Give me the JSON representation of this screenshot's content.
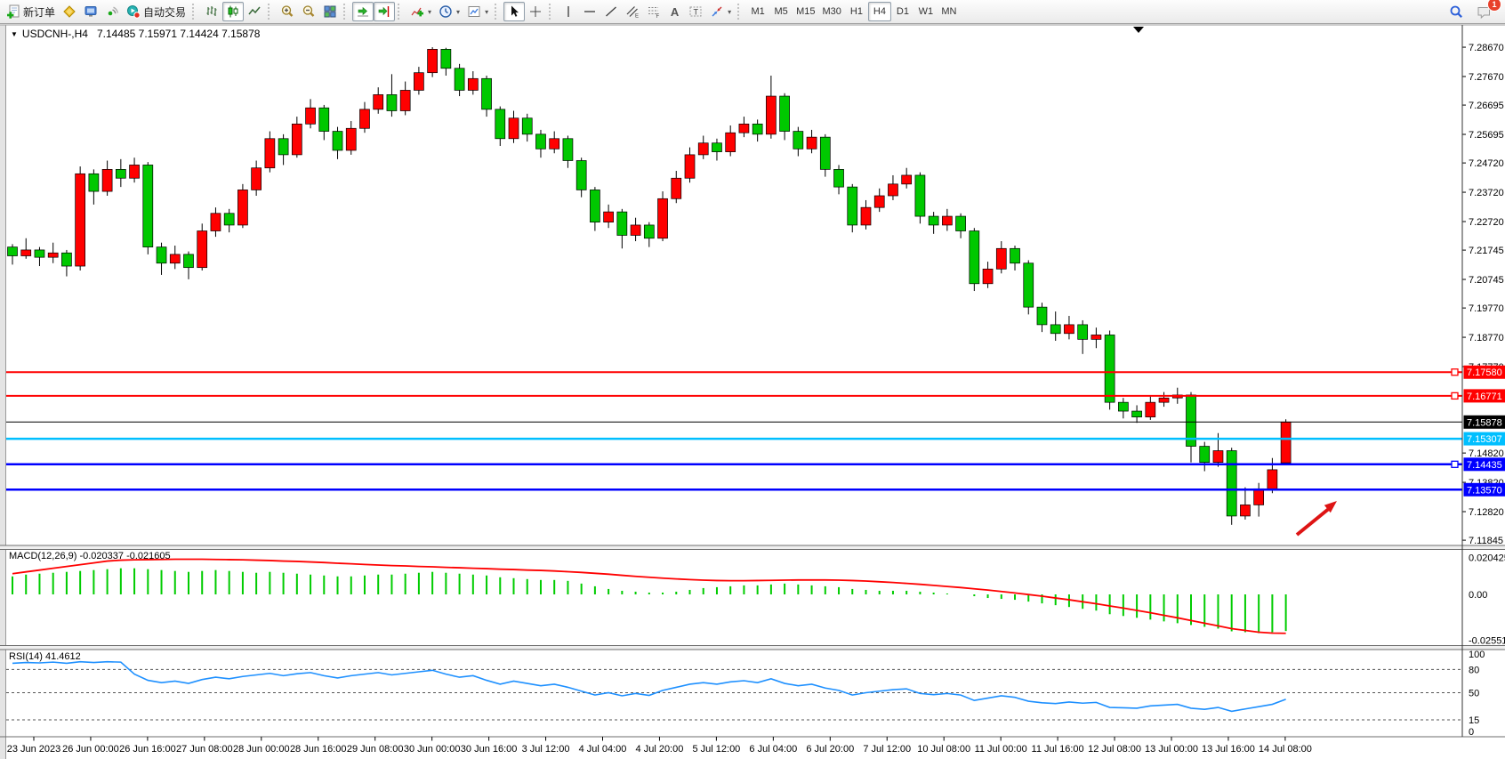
{
  "window": {
    "symbol_title": "USDCNH-,H4",
    "ohlc_text": "7.14485 7.15971 7.14424 7.15878",
    "notification_badge": "1"
  },
  "toolbar": {
    "new_order": "新订单",
    "autotrading": "自动交易",
    "text_tool": "A",
    "label_tool": "T",
    "timeframes": [
      "M1",
      "M5",
      "M15",
      "M30",
      "H1",
      "H4",
      "D1",
      "W1",
      "MN"
    ],
    "active_timeframe": "H4"
  },
  "chart_data": {
    "type": "candlestick",
    "title": "USDCNH-,H4",
    "current": {
      "open": "7.14485",
      "high": "7.15971",
      "low": "7.14424",
      "close": "7.15878"
    },
    "ylim": [
      7.117,
      7.2937
    ],
    "up_color": "#FF0000",
    "down_color": "#00C800",
    "wick_color": "#000000",
    "price_axis_ticks": [
      "7.28670",
      "7.27670",
      "7.26695",
      "7.25695",
      "7.24720",
      "7.23720",
      "7.22720",
      "7.21745",
      "7.20745",
      "7.19770",
      "7.18770",
      "7.17770",
      "7.14820",
      "7.13820",
      "7.12820",
      "7.11845"
    ],
    "candles": [
      [
        7.2185,
        7.2195,
        7.2125,
        7.2155
      ],
      [
        7.2155,
        7.2215,
        7.2145,
        7.2175
      ],
      [
        7.2175,
        7.2185,
        7.212,
        7.215
      ],
      [
        7.215,
        7.22,
        7.213,
        7.2165
      ],
      [
        7.2165,
        7.2175,
        7.2085,
        7.212
      ],
      [
        7.212,
        7.246,
        7.2105,
        7.2435
      ],
      [
        7.2435,
        7.245,
        7.233,
        7.2375
      ],
      [
        7.2375,
        7.248,
        7.236,
        7.245
      ],
      [
        7.245,
        7.2485,
        7.239,
        7.242
      ],
      [
        7.242,
        7.249,
        7.2405,
        7.2465
      ],
      [
        7.2465,
        7.2475,
        7.216,
        7.2185
      ],
      [
        7.2185,
        7.22,
        7.209,
        7.213
      ],
      [
        7.213,
        7.219,
        7.211,
        7.216
      ],
      [
        7.216,
        7.217,
        7.2075,
        7.2115
      ],
      [
        7.2115,
        7.2265,
        7.2105,
        7.224
      ],
      [
        7.224,
        7.232,
        7.222,
        7.23
      ],
      [
        7.23,
        7.2315,
        7.2235,
        7.226
      ],
      [
        7.226,
        7.24,
        7.225,
        7.238
      ],
      [
        7.238,
        7.248,
        7.236,
        7.2455
      ],
      [
        7.2455,
        7.258,
        7.244,
        7.2555
      ],
      [
        7.2555,
        7.257,
        7.2465,
        7.25
      ],
      [
        7.25,
        7.263,
        7.249,
        7.2605
      ],
      [
        7.2605,
        7.269,
        7.259,
        7.266
      ],
      [
        7.266,
        7.267,
        7.255,
        7.258
      ],
      [
        7.258,
        7.2595,
        7.2485,
        7.2515
      ],
      [
        7.2515,
        7.2615,
        7.25,
        7.259
      ],
      [
        7.259,
        7.268,
        7.2575,
        7.2655
      ],
      [
        7.2655,
        7.273,
        7.264,
        7.2705
      ],
      [
        7.2705,
        7.2775,
        7.263,
        7.265
      ],
      [
        7.265,
        7.275,
        7.2635,
        7.272
      ],
      [
        7.272,
        7.28,
        7.2705,
        7.278
      ],
      [
        7.278,
        7.2867,
        7.2765,
        7.286
      ],
      [
        7.286,
        7.2865,
        7.277,
        7.2795
      ],
      [
        7.2795,
        7.281,
        7.27,
        7.272
      ],
      [
        7.272,
        7.2785,
        7.2705,
        7.276
      ],
      [
        7.276,
        7.277,
        7.263,
        7.2655
      ],
      [
        7.2655,
        7.2665,
        7.253,
        7.2555
      ],
      [
        7.2555,
        7.265,
        7.254,
        7.2625
      ],
      [
        7.2625,
        7.264,
        7.2545,
        7.257
      ],
      [
        7.257,
        7.2585,
        7.249,
        7.252
      ],
      [
        7.252,
        7.258,
        7.2505,
        7.2555
      ],
      [
        7.2555,
        7.2565,
        7.2455,
        7.248
      ],
      [
        7.248,
        7.249,
        7.2355,
        7.238
      ],
      [
        7.238,
        7.239,
        7.224,
        7.227
      ],
      [
        7.227,
        7.233,
        7.225,
        7.2305
      ],
      [
        7.2305,
        7.2315,
        7.218,
        7.2225
      ],
      [
        7.2225,
        7.2285,
        7.2205,
        7.226
      ],
      [
        7.226,
        7.227,
        7.2185,
        7.2215
      ],
      [
        7.2215,
        7.2375,
        7.2205,
        7.235
      ],
      [
        7.235,
        7.2445,
        7.2335,
        7.242
      ],
      [
        7.242,
        7.2525,
        7.2405,
        7.25
      ],
      [
        7.25,
        7.2565,
        7.2485,
        7.254
      ],
      [
        7.254,
        7.2555,
        7.248,
        7.251
      ],
      [
        7.251,
        7.26,
        7.2495,
        7.2575
      ],
      [
        7.2575,
        7.263,
        7.256,
        7.2605
      ],
      [
        7.2605,
        7.262,
        7.2545,
        7.257
      ],
      [
        7.257,
        7.277,
        7.2555,
        7.27
      ],
      [
        7.27,
        7.271,
        7.255,
        7.258
      ],
      [
        7.258,
        7.2595,
        7.2495,
        7.252
      ],
      [
        7.252,
        7.2585,
        7.2505,
        7.256
      ],
      [
        7.256,
        7.257,
        7.2425,
        7.245
      ],
      [
        7.245,
        7.2465,
        7.2365,
        7.239
      ],
      [
        7.239,
        7.24,
        7.2235,
        7.226
      ],
      [
        7.226,
        7.2345,
        7.2245,
        7.232
      ],
      [
        7.232,
        7.2385,
        7.2305,
        7.236
      ],
      [
        7.236,
        7.243,
        7.2345,
        7.24
      ],
      [
        7.24,
        7.2455,
        7.2385,
        7.243
      ],
      [
        7.243,
        7.244,
        7.2265,
        7.229
      ],
      [
        7.229,
        7.2305,
        7.223,
        7.226
      ],
      [
        7.226,
        7.2315,
        7.224,
        7.229
      ],
      [
        7.229,
        7.23,
        7.2215,
        7.224
      ],
      [
        7.224,
        7.225,
        7.2035,
        7.206
      ],
      [
        7.206,
        7.2135,
        7.2045,
        7.211
      ],
      [
        7.211,
        7.2205,
        7.2095,
        7.218
      ],
      [
        7.218,
        7.219,
        7.2105,
        7.213
      ],
      [
        7.213,
        7.214,
        7.1955,
        7.198
      ],
      [
        7.198,
        7.1995,
        7.1895,
        7.192
      ],
      [
        7.192,
        7.1965,
        7.1865,
        7.189
      ],
      [
        7.189,
        7.195,
        7.187,
        7.192
      ],
      [
        7.192,
        7.1935,
        7.182,
        7.187
      ],
      [
        7.187,
        7.191,
        7.184,
        7.1885
      ],
      [
        7.1885,
        7.19,
        7.163,
        7.1655
      ],
      [
        7.1655,
        7.167,
        7.16,
        7.1625
      ],
      [
        7.1625,
        7.1645,
        7.1585,
        7.1605
      ],
      [
        7.1605,
        7.1675,
        7.1595,
        7.1655
      ],
      [
        7.1655,
        7.169,
        7.164,
        7.167
      ],
      [
        7.167,
        7.1705,
        7.165,
        7.168
      ],
      [
        7.168,
        7.169,
        7.145,
        7.1505
      ],
      [
        7.1505,
        7.152,
        7.142,
        7.145
      ],
      [
        7.145,
        7.155,
        7.1435,
        7.149
      ],
      [
        7.149,
        7.15,
        7.1237,
        7.1267
      ],
      [
        7.1267,
        7.1365,
        7.1255,
        7.1305
      ],
      [
        7.1305,
        7.138,
        7.1265,
        7.136
      ],
      [
        7.136,
        7.1465,
        7.1345,
        7.1425
      ],
      [
        7.14485,
        7.15971,
        7.14424,
        7.15878
      ]
    ],
    "hlines": [
      {
        "price": 7.1758,
        "label": "7.17580",
        "color": "#FF0000",
        "width": 2,
        "handle": true,
        "role": "resistance-line"
      },
      {
        "price": 7.16771,
        "label": "7.16771",
        "color": "#FF0000",
        "width": 2,
        "handle": true,
        "role": "resistance-line"
      },
      {
        "price": 7.15878,
        "label": "7.15878",
        "color": "#000000",
        "width": 1,
        "handle": false,
        "role": "current-price-line"
      },
      {
        "price": 7.15307,
        "label": "7.15307",
        "color": "#00BFFF",
        "width": 2.5,
        "handle": false,
        "role": "support-line"
      },
      {
        "price": 7.14435,
        "label": "7.14435",
        "color": "#0000FF",
        "width": 2.5,
        "handle": true,
        "role": "support-line"
      },
      {
        "price": 7.1357,
        "label": "7.13570",
        "color": "#0000FF",
        "width": 2.5,
        "handle": false,
        "role": "support-line"
      }
    ],
    "macd": {
      "label": "MACD(12,26,9) -0.020337 -0.021605",
      "hist_color": "#00CC00",
      "signal_color": "#FF0000",
      "axis": [
        [
          0.020425,
          "0.020425"
        ],
        [
          0,
          "0.00"
        ],
        [
          -0.025514,
          "-0.025514"
        ]
      ],
      "histogram": [
        0.01,
        0.011,
        0.0115,
        0.012,
        0.0125,
        0.013,
        0.0135,
        0.014,
        0.0145,
        0.0145,
        0.014,
        0.0135,
        0.013,
        0.0125,
        0.013,
        0.0135,
        0.013,
        0.0125,
        0.012,
        0.0125,
        0.012,
        0.0115,
        0.011,
        0.0105,
        0.01,
        0.01,
        0.0105,
        0.011,
        0.011,
        0.0115,
        0.012,
        0.0125,
        0.012,
        0.0115,
        0.011,
        0.0105,
        0.0095,
        0.009,
        0.0085,
        0.008,
        0.008,
        0.0075,
        0.006,
        0.0045,
        0.003,
        0.002,
        0.0015,
        0.001,
        0.001,
        0.0015,
        0.0025,
        0.0035,
        0.004,
        0.0045,
        0.005,
        0.005,
        0.0055,
        0.006,
        0.0055,
        0.005,
        0.0045,
        0.004,
        0.003,
        0.0025,
        0.002,
        0.002,
        0.002,
        0.0015,
        0.001,
        0.0005,
        0.0,
        -0.001,
        -0.002,
        -0.0025,
        -0.003,
        -0.004,
        -0.005,
        -0.006,
        -0.007,
        -0.008,
        -0.009,
        -0.011,
        -0.012,
        -0.013,
        -0.014,
        -0.015,
        -0.016,
        -0.017,
        -0.018,
        -0.019,
        -0.0205,
        -0.021,
        -0.0215,
        -0.021,
        -0.020337
      ],
      "signal": [
        0.0115,
        0.0125,
        0.0135,
        0.0145,
        0.0155,
        0.0165,
        0.0175,
        0.0185,
        0.019,
        0.0192,
        0.0193,
        0.0194,
        0.0195,
        0.0195,
        0.0195,
        0.0194,
        0.0193,
        0.0192,
        0.019,
        0.0188,
        0.0185,
        0.0183,
        0.018,
        0.0177,
        0.0173,
        0.017,
        0.0166,
        0.0163,
        0.016,
        0.0158,
        0.0155,
        0.0153,
        0.015,
        0.0148,
        0.0145,
        0.0143,
        0.014,
        0.0138,
        0.0135,
        0.0133,
        0.013,
        0.0126,
        0.0122,
        0.0117,
        0.0112,
        0.0106,
        0.01,
        0.0095,
        0.009,
        0.0086,
        0.0082,
        0.0079,
        0.0077,
        0.0076,
        0.0076,
        0.0077,
        0.0078,
        0.0079,
        0.008,
        0.008,
        0.008,
        0.0079,
        0.0077,
        0.0074,
        0.007,
        0.0066,
        0.0061,
        0.0056,
        0.005,
        0.0044,
        0.0038,
        0.0031,
        0.0024,
        0.0016,
        0.0008,
        -0.0001,
        -0.001,
        -0.002,
        -0.003,
        -0.0041,
        -0.0052,
        -0.0064,
        -0.0076,
        -0.0089,
        -0.0102,
        -0.0116,
        -0.013,
        -0.0145,
        -0.016,
        -0.0175,
        -0.019,
        -0.02,
        -0.021,
        -0.0215,
        -0.021605
      ]
    },
    "rsi": {
      "label": "RSI(14) 41.4612",
      "color": "#1E90FF",
      "axis": [
        [
          100,
          "100"
        ],
        [
          80,
          "80"
        ],
        [
          50,
          "50"
        ],
        [
          15,
          "15"
        ],
        [
          0,
          "0"
        ]
      ],
      "levels": [
        80,
        50,
        15
      ],
      "values": [
        88,
        89,
        88.5,
        89.5,
        88,
        90,
        89,
        90,
        89.5,
        74,
        66,
        63,
        65,
        62,
        67,
        70,
        68,
        71,
        73,
        75,
        72,
        74.5,
        76,
        72,
        69,
        72,
        74,
        76,
        73,
        75,
        77,
        79,
        74,
        70,
        72,
        66,
        61,
        65,
        62,
        59,
        61,
        57,
        52,
        47,
        50,
        46,
        49,
        46.5,
        53,
        57,
        61,
        63,
        61,
        64,
        65.5,
        63,
        68,
        62,
        59,
        61,
        56,
        53,
        47,
        50,
        52,
        54,
        55,
        49,
        47.5,
        49,
        47,
        40,
        43,
        46,
        44,
        39,
        37,
        36,
        38,
        36.5,
        37.5,
        31,
        30.5,
        30,
        33,
        34,
        35,
        30,
        28.5,
        31,
        26,
        29,
        32,
        35,
        41.46
      ]
    },
    "time_labels": [
      "23 Jun 2023",
      "26 Jun 00:00",
      "26 Jun 16:00",
      "27 Jun 08:00",
      "28 Jun 00:00",
      "28 Jun 16:00",
      "29 Jun 08:00",
      "30 Jun 00:00",
      "30 Jun 16:00",
      "3 Jul 12:00",
      "4 Jul 04:00",
      "4 Jul 20:00",
      "5 Jul 12:00",
      "6 Jul 04:00",
      "6 Jul 20:00",
      "7 Jul 12:00",
      "10 Jul 08:00",
      "11 Jul 00:00",
      "11 Jul 16:00",
      "12 Jul 08:00",
      "13 Jul 00:00",
      "13 Jul 16:00",
      "14 Jul 08:00"
    ],
    "arrow": {
      "color": "#DE1414"
    }
  }
}
